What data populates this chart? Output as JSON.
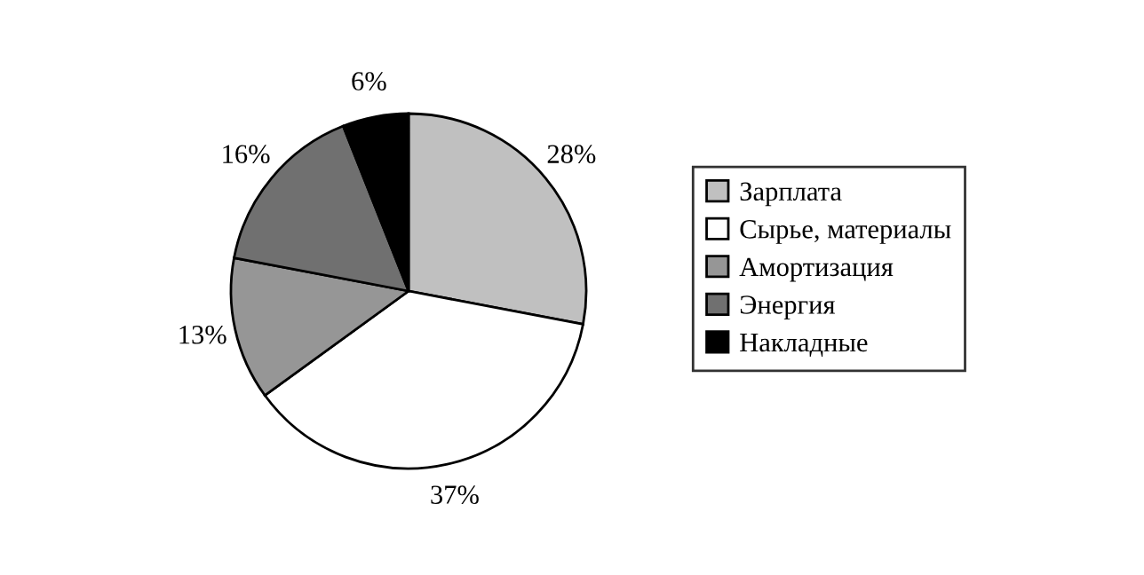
{
  "chart_data": {
    "type": "pie",
    "categories": [
      "Зарплата",
      "Сырье, материалы",
      "Амортизация",
      "Энергия",
      "Накладные"
    ],
    "values": [
      28,
      37,
      13,
      16,
      6
    ],
    "colors": [
      "#c0c0c0",
      "#ffffff",
      "#969696",
      "#707070",
      "#000000"
    ],
    "value_labels": [
      "28%",
      "37%",
      "13%",
      "16%",
      "6%"
    ],
    "legend": "right"
  }
}
